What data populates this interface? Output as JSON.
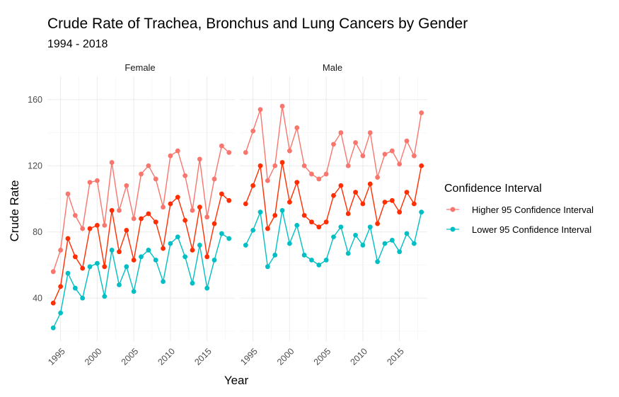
{
  "chart_data": {
    "type": "line",
    "title": "Crude Rate of Trachea, Bronchus and Lung Cancers by Gender",
    "subtitle": "1994 - 2018",
    "xlabel": "Year",
    "ylabel": "Crude Rate",
    "x_ticks": [
      1995,
      2000,
      2005,
      2010,
      2015
    ],
    "y_ticks": [
      40,
      80,
      120,
      160
    ],
    "xlim": [
      1993.2,
      2018.8
    ],
    "ylim": [
      14,
      174
    ],
    "grid": true,
    "legend": {
      "title": "Confidence Interval",
      "placement": "right",
      "entries": [
        {
          "label": "Higher 95 Confidence Interval",
          "color": "#F8766D"
        },
        {
          "label": "Lower 95 Confidence Interval",
          "color": "#00BFC4"
        }
      ]
    },
    "facets": [
      {
        "label": "Female",
        "x": [
          1994,
          1995,
          1996,
          1997,
          1998,
          1999,
          2000,
          2001,
          2002,
          2003,
          2004,
          2005,
          2006,
          2007,
          2008,
          2009,
          2010,
          2011,
          2012,
          2013,
          2014,
          2015,
          2016,
          2017,
          2018
        ],
        "higher": [
          56,
          69,
          103,
          90,
          82,
          110,
          111,
          84,
          122,
          93,
          108,
          88,
          115,
          120,
          112,
          95,
          126,
          129,
          114,
          93,
          124,
          89,
          112,
          132,
          128
        ],
        "estimate": [
          37,
          47,
          76,
          65,
          58,
          82,
          84,
          59,
          93,
          68,
          81,
          63,
          88,
          91,
          86,
          70,
          97,
          101,
          87,
          69,
          95,
          65,
          85,
          103,
          99
        ],
        "lower": [
          22,
          31,
          55,
          46,
          40,
          59,
          61,
          41,
          69,
          48,
          59,
          44,
          65,
          69,
          63,
          50,
          73,
          77,
          65,
          49,
          72,
          46,
          63,
          79,
          76
        ]
      },
      {
        "label": "Male",
        "x": [
          1994,
          1995,
          1996,
          1997,
          1998,
          1999,
          2000,
          2001,
          2002,
          2003,
          2004,
          2005,
          2006,
          2007,
          2008,
          2009,
          2010,
          2011,
          2012,
          2013,
          2014,
          2015,
          2016,
          2017,
          2018
        ],
        "higher": [
          128,
          141,
          154,
          111,
          120,
          156,
          129,
          143,
          120,
          115,
          112,
          115,
          133,
          140,
          120,
          134,
          126,
          140,
          113,
          127,
          129,
          121,
          135,
          126,
          152
        ],
        "estimate": [
          97,
          108,
          120,
          82,
          90,
          122,
          98,
          110,
          90,
          86,
          83,
          86,
          102,
          108,
          91,
          104,
          97,
          109,
          85,
          98,
          99,
          92,
          104,
          97,
          120
        ],
        "lower": [
          72,
          81,
          92,
          59,
          66,
          93,
          73,
          84,
          66,
          63,
          60,
          63,
          77,
          83,
          67,
          78,
          72,
          83,
          62,
          73,
          75,
          68,
          79,
          73,
          92
        ]
      }
    ],
    "series_colors": {
      "higher": "#F8766D",
      "estimate": "#FF2D00",
      "lower": "#00BFC4"
    }
  }
}
